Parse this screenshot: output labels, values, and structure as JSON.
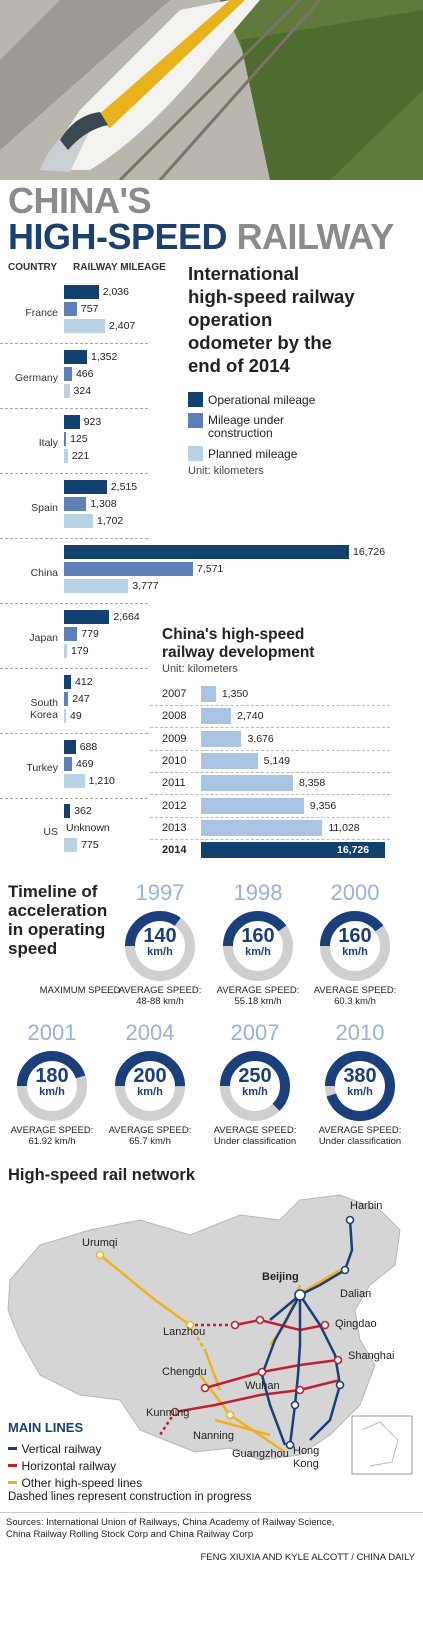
{
  "title": {
    "line1": "CHINA'S",
    "line2a": "HIGH-SPEED",
    "line2b": "RAILWAY"
  },
  "col_country": "COUNTRY",
  "col_mileage": "RAILWAY MILEAGE",
  "odometer": {
    "title": [
      "International",
      "high-speed railway",
      "operation",
      "odometer by the",
      "end of 2014"
    ],
    "legend": [
      "Operational mileage",
      "Mileage under construction",
      "Planned mileage"
    ],
    "unit": "Unit: kilometers"
  },
  "development": {
    "title": [
      "China's high-speed",
      "railway development"
    ],
    "unit": "Unit: kilometers"
  },
  "timeline": {
    "title": [
      "Timeline of",
      "acceleration",
      "in operating",
      "speed"
    ],
    "max_label": "MAXIMUM SPEED",
    "unit": "km/h"
  },
  "network": {
    "title": "High-speed rail network",
    "legend_title": "MAIN LINES",
    "legend": [
      "Vertical railway",
      "Horizontal railway",
      "Other high-speed lines"
    ],
    "note": "Dashed lines represent construction in progress",
    "cities": [
      "Harbin",
      "Urumqi",
      "Beijing",
      "Dalian",
      "Lanzhou",
      "Qingdao",
      "Chengdu",
      "Wuhan",
      "Shanghai",
      "Kunming",
      "Nanning",
      "Guangzhou",
      "Hong Kong"
    ]
  },
  "sources": [
    "Sources: International Union of Railways, China Academy of Railway Science,",
    "China Railway Rolling Stock Corp and China Railway Corp"
  ],
  "credit": "FENG XIUXIA AND KYLE ALCOTT / CHINA DAILY",
  "colors": {
    "dark": "#12406f",
    "mid": "#5f7fb8",
    "light": "#b8d3e6",
    "dev": "#a9c3e2",
    "vertical": "#1b3f7a",
    "horizontal": "#c0202f",
    "other": "#f2b01e"
  },
  "chart_data": [
    {
      "type": "bar",
      "title": "International high-speed railway operation odometer by the end of 2014",
      "unit": "kilometers",
      "categories": [
        "France",
        "Germany",
        "Italy",
        "Spain",
        "China",
        "Japan",
        "South Korea",
        "Turkey",
        "US"
      ],
      "series": [
        {
          "name": "Operational mileage",
          "values": [
            2036,
            1352,
            923,
            2515,
            16726,
            2664,
            412,
            688,
            362
          ],
          "labels": [
            "2,036",
            "1,352",
            "923",
            "2,515",
            "16,726",
            "2,664",
            "412",
            "688",
            "362"
          ]
        },
        {
          "name": "Mileage under construction",
          "values": [
            757,
            466,
            125,
            1308,
            7571,
            779,
            247,
            469,
            null
          ],
          "labels": [
            "757",
            "466",
            "125",
            "1,308",
            "7,571",
            "779",
            "247",
            "469",
            "Unknown"
          ]
        },
        {
          "name": "Planned mileage",
          "values": [
            2407,
            324,
            221,
            1702,
            3777,
            179,
            49,
            1210,
            775
          ],
          "labels": [
            "2,407",
            "324",
            "221",
            "1,702",
            "3,777",
            "179",
            "49",
            "1,210",
            "775"
          ]
        }
      ]
    },
    {
      "type": "bar",
      "title": "China's high-speed railway development",
      "unit": "kilometers",
      "categories": [
        "2007",
        "2008",
        "2009",
        "2010",
        "2011",
        "2012",
        "2013",
        "2014"
      ],
      "values": [
        1350,
        2740,
        3676,
        5149,
        8358,
        9356,
        11028,
        16726
      ],
      "labels": [
        "1,350",
        "2,740",
        "3,676",
        "5,149",
        "8,358",
        "9,356",
        "11,028",
        "16,726"
      ]
    },
    {
      "type": "table",
      "title": "Timeline of acceleration in operating speed",
      "rows": [
        {
          "year": "1997",
          "max": 140,
          "avg_label": "AVERAGE SPEED:",
          "avg": "48-88 km/h"
        },
        {
          "year": "1998",
          "max": 160,
          "avg_label": "AVERAGE SPEED:",
          "avg": "55.18 km/h"
        },
        {
          "year": "2000",
          "max": 160,
          "avg_label": "AVERAGE SPEED:",
          "avg": "60.3 km/h"
        },
        {
          "year": "2001",
          "max": 180,
          "avg_label": "AVERAGE SPEED:",
          "avg": "61.92 km/h"
        },
        {
          "year": "2004",
          "max": 200,
          "avg_label": "AVERAGE SPEED:",
          "avg": "65.7 km/h"
        },
        {
          "year": "2007",
          "max": 250,
          "avg_label": "AVERAGE SPEED:",
          "avg": "Under classification"
        },
        {
          "year": "2010",
          "max": 380,
          "avg_label": "AVERAGE SPEED:",
          "avg": "Under classification"
        }
      ],
      "gauge_max": 400
    }
  ]
}
